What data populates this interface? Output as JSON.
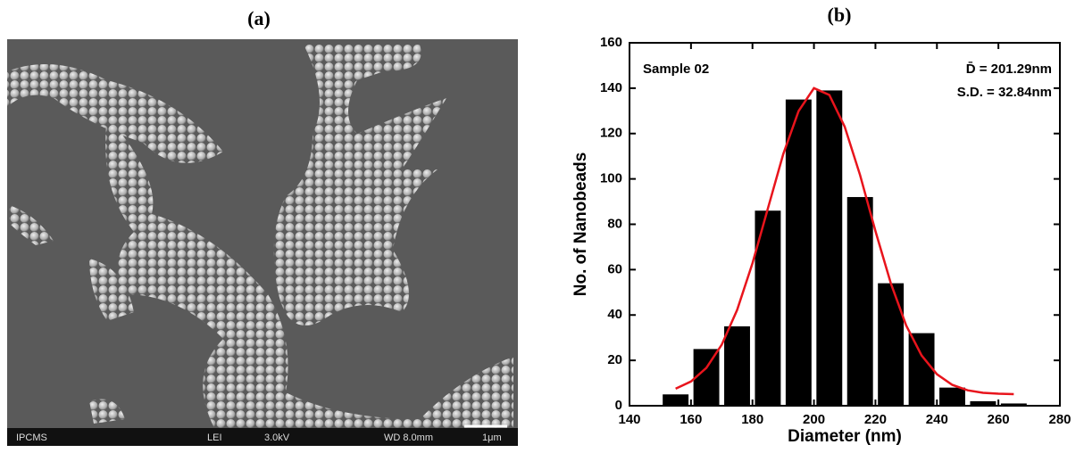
{
  "image_panel": {
    "label": "(a)",
    "info_bar": [
      "IPCMS",
      "LEI",
      "3.0kV",
      "WD 8.0mm",
      "1μm"
    ]
  },
  "chart_data": {
    "type": "histogram",
    "title": "(b)",
    "x_label": "Diameter (nm)",
    "y_label": "No. of Nanobeads",
    "bins": [
      150,
      160,
      170,
      180,
      190,
      200,
      210,
      220,
      230,
      240,
      250,
      260,
      270
    ],
    "values": [
      5,
      25,
      35,
      86,
      135,
      139,
      92,
      54,
      32,
      8,
      2,
      1
    ],
    "color": "#000000",
    "fit": {
      "color": "#e8141c",
      "x": [
        155,
        160,
        165,
        170,
        175,
        180,
        185,
        190,
        195,
        200,
        205,
        210,
        215,
        220,
        225,
        230,
        235,
        240,
        245,
        250,
        255,
        260,
        265
      ],
      "values": [
        7.5,
        10.7,
        16.7,
        26.9,
        42.2,
        62.8,
        86.9,
        110.9,
        129.9,
        140,
        137,
        123,
        101.7,
        77,
        54,
        35.4,
        22.2,
        13.9,
        9.2,
        6.8,
        5.7,
        5.3,
        5.1
      ]
    },
    "annotations": [
      "Sample 02",
      "D̄ = 201.29nm",
      "S.D. = 32.84nm"
    ],
    "xlim": [
      140,
      280
    ],
    "xticks": [
      140,
      160,
      180,
      200,
      220,
      240,
      260,
      280
    ],
    "ylim": [
      0,
      160
    ],
    "yticks": [
      0,
      20,
      40,
      60,
      80,
      100,
      120,
      140,
      160
    ]
  }
}
